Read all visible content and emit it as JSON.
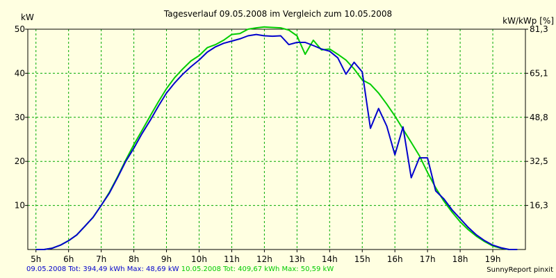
{
  "chart_data": {
    "type": "line",
    "title": "Tagesverlauf 09.05.2008 im Vergleich zum 10.05.2008",
    "ylabel_left": "kW",
    "ylabel_right": "kW/kWp [%]",
    "xlim": [
      4.75,
      20.0
    ],
    "ylim": [
      0,
      50
    ],
    "x_ticks": [
      5,
      6,
      7,
      8,
      9,
      10,
      11,
      12,
      13,
      14,
      15,
      16,
      17,
      18,
      19
    ],
    "x_tick_labels": [
      "5h",
      "6h",
      "7h",
      "8h",
      "9h",
      "10h",
      "11h",
      "12h",
      "13h",
      "14h",
      "15h",
      "16h",
      "17h",
      "18h",
      "19h"
    ],
    "y_ticks_left": [
      10,
      20,
      30,
      40,
      50
    ],
    "y_tick_labels_left": [
      "10",
      "20",
      "30",
      "40",
      "50"
    ],
    "y_ticks_right": [
      10,
      20,
      30,
      40,
      50
    ],
    "y_tick_labels_right": [
      "16,3",
      "32,5",
      "48,8",
      "65,1",
      "81,3"
    ],
    "grid": true,
    "series": [
      {
        "name": "09.05.2008",
        "color": "#0000cc",
        "points": [
          [
            5.0,
            0.0
          ],
          [
            5.25,
            0.0
          ],
          [
            5.5,
            0.3
          ],
          [
            5.75,
            1.0
          ],
          [
            6.0,
            2.0
          ],
          [
            6.25,
            3.3
          ],
          [
            6.5,
            5.3
          ],
          [
            6.75,
            7.3
          ],
          [
            7.0,
            10.0
          ],
          [
            7.25,
            12.8
          ],
          [
            7.5,
            16.3
          ],
          [
            7.75,
            20.0
          ],
          [
            8.0,
            23.0
          ],
          [
            8.25,
            26.3
          ],
          [
            8.5,
            29.3
          ],
          [
            8.75,
            32.5
          ],
          [
            9.0,
            35.5
          ],
          [
            9.25,
            37.8
          ],
          [
            9.5,
            39.8
          ],
          [
            9.75,
            41.5
          ],
          [
            10.0,
            43.0
          ],
          [
            10.25,
            44.8
          ],
          [
            10.5,
            46.0
          ],
          [
            10.75,
            46.8
          ],
          [
            11.0,
            47.3
          ],
          [
            11.25,
            47.8
          ],
          [
            11.5,
            48.5
          ],
          [
            11.75,
            48.8
          ],
          [
            12.0,
            48.5
          ],
          [
            12.25,
            48.4
          ],
          [
            12.5,
            48.5
          ],
          [
            12.75,
            46.5
          ],
          [
            13.0,
            47.0
          ],
          [
            13.25,
            47.0
          ],
          [
            13.5,
            46.3
          ],
          [
            13.75,
            45.5
          ],
          [
            14.0,
            45.0
          ],
          [
            14.25,
            43.5
          ],
          [
            14.5,
            39.8
          ],
          [
            14.75,
            42.5
          ],
          [
            15.0,
            40.3
          ],
          [
            15.25,
            27.5
          ],
          [
            15.5,
            32.0
          ],
          [
            15.75,
            28.0
          ],
          [
            16.0,
            21.5
          ],
          [
            16.25,
            27.8
          ],
          [
            16.5,
            16.3
          ],
          [
            16.75,
            20.8
          ],
          [
            17.0,
            20.8
          ],
          [
            17.25,
            13.3
          ],
          [
            17.5,
            11.5
          ],
          [
            17.75,
            9.0
          ],
          [
            18.0,
            7.0
          ],
          [
            18.25,
            5.0
          ],
          [
            18.5,
            3.3
          ],
          [
            18.75,
            2.0
          ],
          [
            19.0,
            1.0
          ],
          [
            19.25,
            0.4
          ],
          [
            19.5,
            0.0
          ],
          [
            19.75,
            0.0
          ]
        ]
      },
      {
        "name": "10.05.2008",
        "color": "#00cc00",
        "points": [
          [
            5.0,
            0.0
          ],
          [
            5.25,
            0.0
          ],
          [
            5.5,
            0.3
          ],
          [
            5.75,
            1.0
          ],
          [
            6.0,
            2.0
          ],
          [
            6.25,
            3.3
          ],
          [
            6.5,
            5.3
          ],
          [
            6.75,
            7.3
          ],
          [
            7.0,
            10.0
          ],
          [
            7.25,
            13.0
          ],
          [
            7.5,
            16.5
          ],
          [
            7.75,
            20.3
          ],
          [
            8.0,
            23.8
          ],
          [
            8.25,
            27.0
          ],
          [
            8.5,
            30.3
          ],
          [
            8.75,
            33.5
          ],
          [
            9.0,
            36.5
          ],
          [
            9.25,
            39.0
          ],
          [
            9.5,
            41.0
          ],
          [
            9.75,
            42.8
          ],
          [
            10.0,
            44.0
          ],
          [
            10.25,
            45.8
          ],
          [
            10.5,
            46.5
          ],
          [
            10.75,
            47.5
          ],
          [
            11.0,
            48.8
          ],
          [
            11.25,
            49.0
          ],
          [
            11.5,
            50.0
          ],
          [
            11.75,
            50.3
          ],
          [
            12.0,
            50.5
          ],
          [
            12.25,
            50.4
          ],
          [
            12.5,
            50.3
          ],
          [
            12.75,
            49.8
          ],
          [
            13.0,
            48.5
          ],
          [
            13.25,
            44.3
          ],
          [
            13.5,
            47.5
          ],
          [
            13.75,
            45.3
          ],
          [
            14.0,
            45.5
          ],
          [
            14.25,
            44.3
          ],
          [
            14.5,
            43.0
          ],
          [
            14.75,
            41.0
          ],
          [
            15.0,
            38.5
          ],
          [
            15.25,
            37.5
          ],
          [
            15.5,
            35.5
          ],
          [
            15.75,
            33.0
          ],
          [
            16.0,
            30.3
          ],
          [
            16.25,
            27.3
          ],
          [
            16.5,
            24.3
          ],
          [
            16.75,
            21.3
          ],
          [
            17.0,
            17.5
          ],
          [
            17.25,
            14.0
          ],
          [
            17.5,
            11.0
          ],
          [
            17.75,
            8.5
          ],
          [
            18.0,
            6.3
          ],
          [
            18.25,
            4.5
          ],
          [
            18.5,
            3.0
          ],
          [
            18.75,
            1.8
          ],
          [
            19.0,
            0.8
          ],
          [
            19.25,
            0.3
          ],
          [
            19.5,
            0.0
          ],
          [
            19.75,
            0.0
          ]
        ]
      }
    ]
  },
  "footer": {
    "series1_text": "09.05.2008 Tot: 394,49 kWh Max: 48,69 kW",
    "series2_text": "10.05.2008 Tot: 409,67 kWh Max: 50,59 kW",
    "series1_color": "#0000cc",
    "series2_color": "#00cc00",
    "credit": "SunnyReport pinxit"
  }
}
